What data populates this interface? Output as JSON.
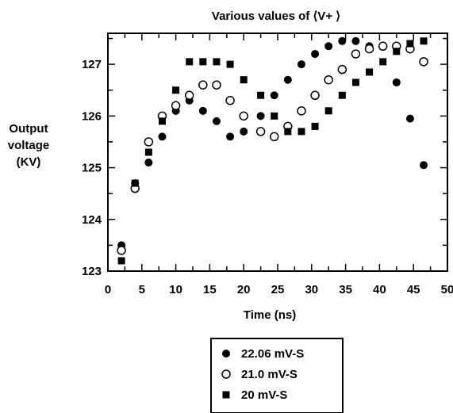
{
  "chart_data": {
    "type": "scatter",
    "title": "Various values of ⟨V+ ⟩",
    "xlabel": "Time (ns)",
    "ylabel_lines": [
      "Output",
      "voltage",
      "(KV)"
    ],
    "xlim": [
      0,
      50
    ],
    "ylim": [
      123,
      127.6
    ],
    "xticks": [
      0,
      5,
      10,
      15,
      20,
      25,
      30,
      35,
      40,
      45,
      50
    ],
    "yticks": [
      123,
      124,
      125,
      126,
      127
    ],
    "grid": false,
    "legend_position": "bottom-center",
    "series": [
      {
        "name": "22.06 mV-S",
        "marker": "filled-circle",
        "x": [
          2,
          4,
          6,
          8,
          10,
          12,
          14,
          16,
          18,
          20,
          22.5,
          24.5,
          26.5,
          28.5,
          30.5,
          32.5,
          34.5,
          36.5,
          38.5,
          42.5,
          44.5,
          46.5
        ],
        "y": [
          123.5,
          124.7,
          125.1,
          125.6,
          126.1,
          126.3,
          126.1,
          125.9,
          125.6,
          125.7,
          126.0,
          126.4,
          126.7,
          127.0,
          127.2,
          127.35,
          127.45,
          127.45,
          127.35,
          126.65,
          125.95,
          125.05
        ]
      },
      {
        "name": "21.0 mV-S",
        "marker": "open-circle",
        "x": [
          2,
          4,
          6,
          8,
          10,
          12,
          14,
          16,
          18,
          20,
          22.5,
          24.5,
          26.5,
          28.5,
          30.5,
          32.5,
          34.5,
          36.5,
          38.5,
          40.5,
          42.5,
          44.5,
          46.5
        ],
        "y": [
          123.4,
          124.6,
          125.5,
          126.0,
          126.2,
          126.4,
          126.6,
          126.6,
          126.3,
          126.0,
          125.7,
          125.6,
          125.8,
          126.1,
          126.4,
          126.7,
          126.9,
          127.2,
          127.3,
          127.35,
          127.35,
          127.3,
          127.05
        ]
      },
      {
        "name": "20 mV-S",
        "marker": "filled-square",
        "x": [
          2,
          4,
          6,
          8,
          10,
          12,
          14,
          16,
          18,
          20,
          22.5,
          24.5,
          26.5,
          28.5,
          30.5,
          32.5,
          34.5,
          36.5,
          38.5,
          40.5,
          42.5,
          44.5,
          46.5
        ],
        "y": [
          123.2,
          124.7,
          125.3,
          125.9,
          126.5,
          127.05,
          127.05,
          127.05,
          127.0,
          126.7,
          126.4,
          126.0,
          125.7,
          125.7,
          125.8,
          126.1,
          126.4,
          126.65,
          126.85,
          127.05,
          127.25,
          127.4,
          127.45
        ]
      }
    ]
  }
}
